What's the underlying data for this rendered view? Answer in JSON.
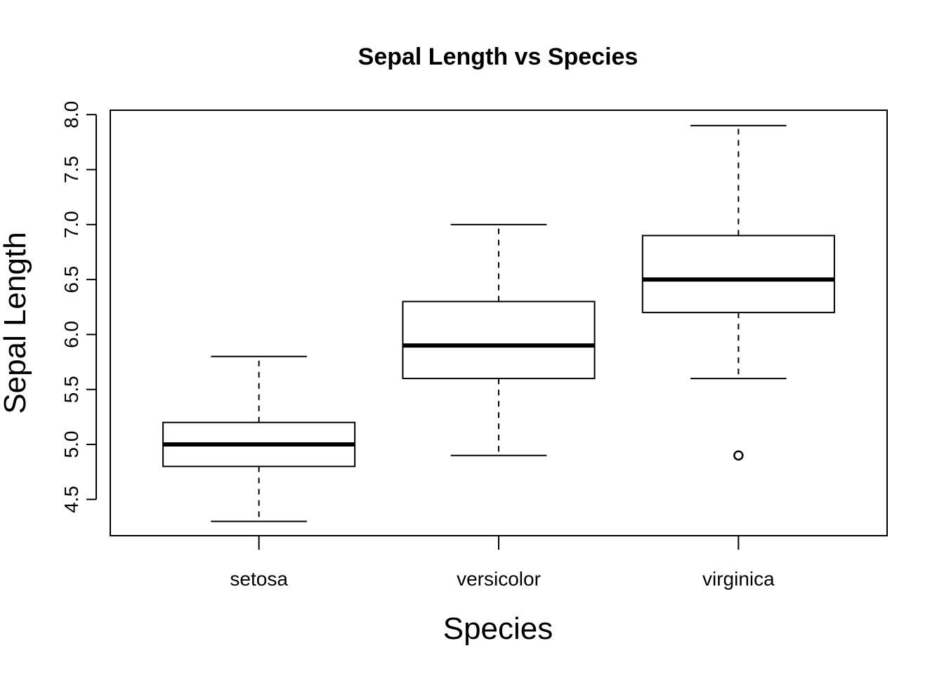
{
  "chart_data": {
    "type": "box",
    "title": "Sepal Length vs Species",
    "xlabel": "Species",
    "ylabel": "Sepal Length",
    "ylim": [
      4.17,
      8.04
    ],
    "yticks": [
      4.5,
      5.0,
      5.5,
      6.0,
      6.5,
      7.0,
      7.5,
      8.0
    ],
    "ytick_labels": [
      "4.5",
      "5.0",
      "5.5",
      "6.0",
      "6.5",
      "7.0",
      "7.5",
      "8.0"
    ],
    "categories": [
      "setosa",
      "versicolor",
      "virginica"
    ],
    "boxes": [
      {
        "category": "setosa",
        "whisker_low": 4.3,
        "q1": 4.8,
        "median": 5.0,
        "q3": 5.2,
        "whisker_high": 5.8,
        "outliers": []
      },
      {
        "category": "versicolor",
        "whisker_low": 4.9,
        "q1": 5.6,
        "median": 5.9,
        "q3": 6.3,
        "whisker_high": 7.0,
        "outliers": []
      },
      {
        "category": "virginica",
        "whisker_low": 5.6,
        "q1": 6.2,
        "median": 6.5,
        "q3": 6.9,
        "whisker_high": 7.9,
        "outliers": [
          4.9
        ]
      }
    ],
    "grid": false,
    "legend": "none"
  }
}
